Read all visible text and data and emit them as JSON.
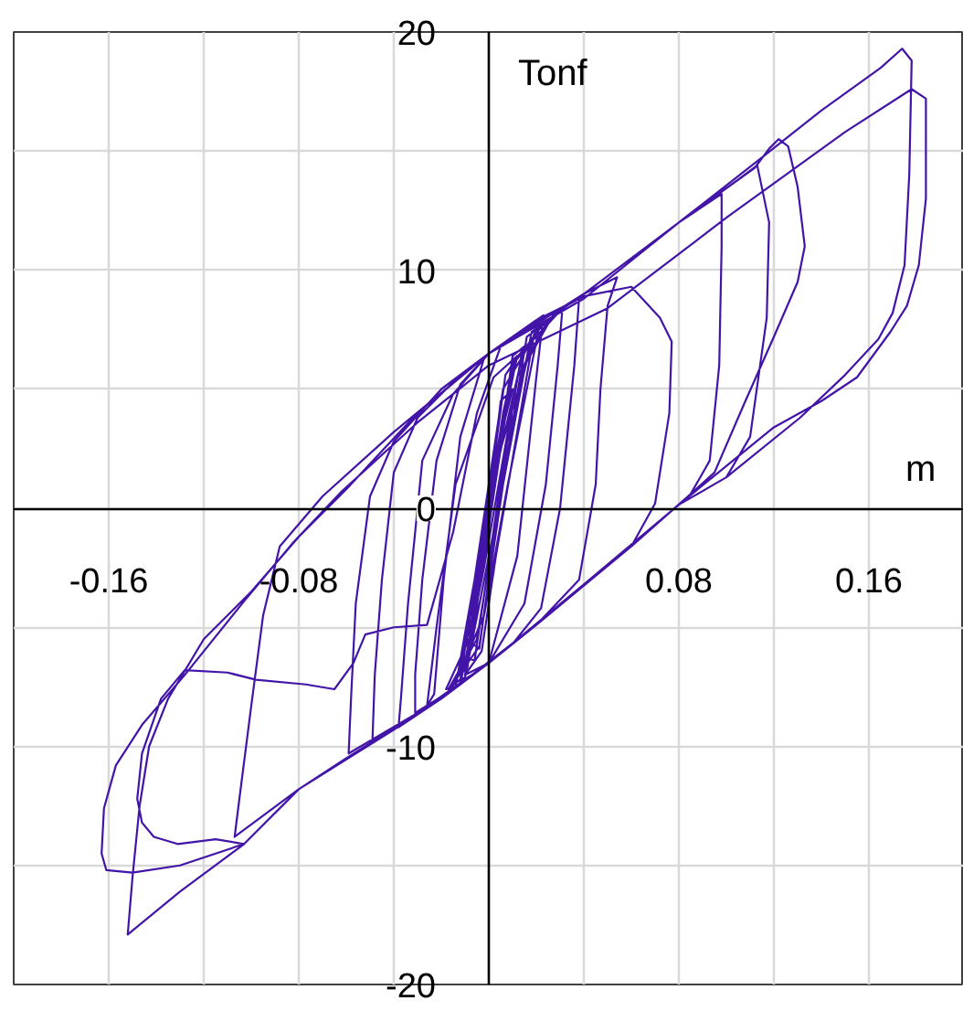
{
  "chart_data": {
    "type": "line",
    "xlabel": "m",
    "ylabel": "Tonf",
    "x": [
      0,
      0.006,
      0.011,
      0.007,
      -0.004,
      -0.008,
      -0.004,
      0.008,
      0.014,
      0.01,
      -0.002,
      -0.011,
      -0.006,
      0.007,
      0.018,
      0.031,
      0.029,
      0.024,
      0.015,
      0,
      -0.015,
      -0.031,
      -0.031,
      -0.028,
      -0.022,
      -0.012,
      0,
      0.023,
      0.02,
      0.012,
      0,
      -0.02,
      -0.038,
      -0.037,
      -0.034,
      -0.028,
      -0.015,
      0,
      0.02,
      0.038,
      0.036,
      0.03,
      0.022,
      0.01,
      -0.004,
      -0.012,
      -0.009,
      0.004,
      0.015,
      0.01,
      -0.003,
      -0.013,
      -0.009,
      0.005,
      0.02,
      0.016,
      0.004,
      -0.005,
      -0.017,
      -0.012,
      -0.002,
      0.012,
      0.025,
      0.021,
      0.008,
      -0.002,
      -0.014,
      -0.01,
      0.002,
      0.014,
      0.027,
      0.04,
      0.054,
      0.05,
      0.047,
      0.045,
      0.038,
      0.02,
      0,
      -0.02,
      -0.04,
      -0.049,
      -0.048,
      -0.045,
      -0.04,
      -0.03,
      -0.015,
      0,
      0.02,
      0.04,
      0.06,
      0.072,
      0.077,
      0.076,
      0.07,
      0.06,
      0.04,
      0.02,
      0,
      -0.03,
      -0.059,
      -0.058,
      -0.056,
      -0.05,
      -0.04,
      -0.02,
      0,
      0.04,
      0.08,
      0.098,
      0.098,
      0.097,
      0.093,
      0.085,
      0.06,
      0.02,
      -0.02,
      -0.06,
      -0.08,
      -0.107,
      -0.105,
      -0.1,
      -0.095,
      -0.088,
      -0.07,
      -0.04,
      0,
      0.04,
      0.08,
      0.112,
      0.118,
      0.122,
      0.126,
      0.13,
      0.133,
      0.13,
      0.12,
      0.108,
      0.095,
      0.08,
      0.04,
      0,
      -0.04,
      -0.08,
      -0.103,
      -0.115,
      -0.131,
      -0.141,
      -0.146,
      -0.148,
      -0.146,
      -0.138,
      -0.128,
      -0.11,
      -0.098,
      -0.077,
      -0.065,
      -0.057,
      -0.052,
      -0.04,
      -0.026,
      -0.015,
      -0.005,
      0.005,
      0.04,
      0.08,
      0.105,
      0.113,
      0.118,
      0.117,
      0.11,
      0.1,
      0.08,
      0.04,
      0,
      -0.04,
      -0.08,
      -0.103,
      -0.13,
      -0.152,
      -0.15,
      -0.147,
      -0.143,
      -0.135,
      -0.12,
      -0.1,
      -0.08,
      -0.06,
      -0.03,
      0,
      0.04,
      0.08,
      0.112,
      0.14,
      0.165,
      0.174,
      0.178,
      0.177,
      0.175,
      0.17,
      0.164,
      0.15,
      0.131,
      0.1,
      0.08,
      0.04,
      0,
      -0.04,
      -0.08,
      -0.103,
      -0.13,
      -0.15,
      -0.161,
      -0.163,
      -0.162,
      -0.157,
      -0.146,
      -0.128,
      -0.103,
      -0.082,
      -0.062,
      -0.03,
      0,
      0.05,
      0.1,
      0.15,
      0.178,
      0.184,
      0.184,
      0.181,
      0.176,
      0.169,
      0.155,
      0.14,
      0.12,
      0.08,
      0.04,
      0,
      -0.01,
      -0.005,
      0.005,
      0.01,
      0.005,
      -0.006,
      -0.018,
      -0.014,
      -0.006,
      0.006,
      0.022,
      0.018,
      0.006,
      -0.004,
      -0.016,
      -0.012,
      -0.001,
      0.01,
      0.024,
      0.019,
      0.003,
      -0.003,
      -0.01,
      -0.002,
      0.008,
      0.012,
      0.002,
      -0.014,
      -0.022,
      -0.026,
      -0.023,
      -0.019,
      -0.012,
      -0.002
    ],
    "series": [
      {
        "color": "#4314a8",
        "values": [
          0,
          4,
          6.2,
          5.6,
          -2.5,
          -5.6,
          -5.9,
          3,
          6.6,
          6.1,
          -1.5,
          -6.2,
          -6.4,
          2.5,
          7,
          8.4,
          6,
          1,
          -4,
          -6.5,
          -7.6,
          -8.6,
          -7,
          -3,
          2,
          5.2,
          6.5,
          8.1,
          5.5,
          -2,
          -6.5,
          -8,
          -9.2,
          -8,
          -4,
          2,
          4.8,
          6.5,
          7.8,
          8.8,
          6,
          0,
          -4.2,
          -5.7,
          -6.8,
          -7.3,
          -6,
          2,
          6.8,
          6.4,
          -3,
          -7,
          -6.7,
          2.5,
          7.5,
          7.2,
          0,
          -5.5,
          -7.6,
          -7.4,
          -2.5,
          5.5,
          7.9,
          7.5,
          1,
          -4.5,
          -7.3,
          -7.1,
          -1,
          5.8,
          8.1,
          9,
          9.7,
          8.5,
          5,
          1,
          -3,
          -4.9,
          -6.5,
          -8,
          -9.3,
          -9.8,
          -7,
          -3,
          1.5,
          3.8,
          5.3,
          6.5,
          7.9,
          8.9,
          9.3,
          8,
          7,
          4,
          0.2,
          -1.6,
          -3.2,
          -4.9,
          -6.5,
          -8.6,
          -10.3,
          -8,
          -4,
          0.5,
          2.8,
          5,
          6.5,
          8.8,
          12,
          13.2,
          11,
          6,
          2,
          0.6,
          -1.6,
          -4.9,
          -8,
          -10.5,
          -11.8,
          -13.8,
          -12.2,
          -8.3,
          -4.5,
          -1.6,
          0.5,
          3.2,
          6.5,
          8.8,
          12,
          14.3,
          15.1,
          15.5,
          15.2,
          13.5,
          11,
          9.5,
          7.2,
          4.5,
          1.5,
          0.15,
          -3.2,
          -6.5,
          -9.3,
          -11.8,
          -14.1,
          -13.9,
          -14.1,
          -13.8,
          -13.2,
          -12.2,
          -10.3,
          -8,
          -6.8,
          -6.9,
          -7.2,
          -7.4,
          -7.6,
          -6.5,
          -5.3,
          -5,
          -4.9,
          -1,
          4,
          6.8,
          9,
          12,
          13.8,
          14.4,
          12,
          8,
          3,
          1.3,
          0.15,
          -3.2,
          -6.5,
          -9.3,
          -11.8,
          -14.1,
          -16.1,
          -17.9,
          -15.5,
          -12.5,
          -10,
          -8,
          -5.5,
          -3.5,
          -1.2,
          0.8,
          4,
          6.5,
          8.8,
          12,
          14.5,
          16.7,
          18.5,
          19.3,
          18.8,
          14,
          10.2,
          8.2,
          7.1,
          5.6,
          3.8,
          1.3,
          0.15,
          -3.2,
          -6.5,
          -9.3,
          -11.8,
          -14.1,
          -15,
          -15.3,
          -15.2,
          -14.5,
          -12.6,
          -10.8,
          -9.1,
          -7,
          -3.9,
          -1.4,
          0.7,
          3.6,
          6,
          8.4,
          12.2,
          15.8,
          17.6,
          17.2,
          13,
          10.2,
          8.5,
          7.4,
          5.5,
          4.5,
          3.4,
          0.15,
          -3.2,
          -6.5,
          -7,
          -3,
          3,
          5,
          4.5,
          -5,
          -7.6,
          -7.5,
          -3,
          5,
          7.7,
          7.4,
          1,
          -5.8,
          -7.5,
          -7.2,
          0,
          6,
          7.9,
          7.3,
          -2,
          -6,
          -7,
          -2,
          4.5,
          6.4,
          5.5,
          1,
          -5,
          -8.3,
          -7.8,
          -3,
          3,
          6.3
        ]
      }
    ],
    "xlim": [
      -0.2,
      0.2
    ],
    "ylim": [
      -20,
      20
    ],
    "xticks": [
      {
        "value": -0.2,
        "label": null
      },
      -0.16,
      {
        "value": -0.12,
        "label": null
      },
      -0.08,
      {
        "value": -0.04,
        "label": null
      },
      {
        "value": 0.04,
        "label": null
      },
      0.08,
      {
        "value": 0.12,
        "label": null
      },
      0.16,
      {
        "value": 0.2,
        "label": null
      }
    ],
    "yticks": [
      -20,
      {
        "value": -15,
        "label": null
      },
      -10,
      {
        "value": -5,
        "label": null
      },
      0,
      {
        "value": 5,
        "label": null
      },
      10,
      {
        "value": 15,
        "label": null
      },
      20
    ],
    "grid": true
  }
}
